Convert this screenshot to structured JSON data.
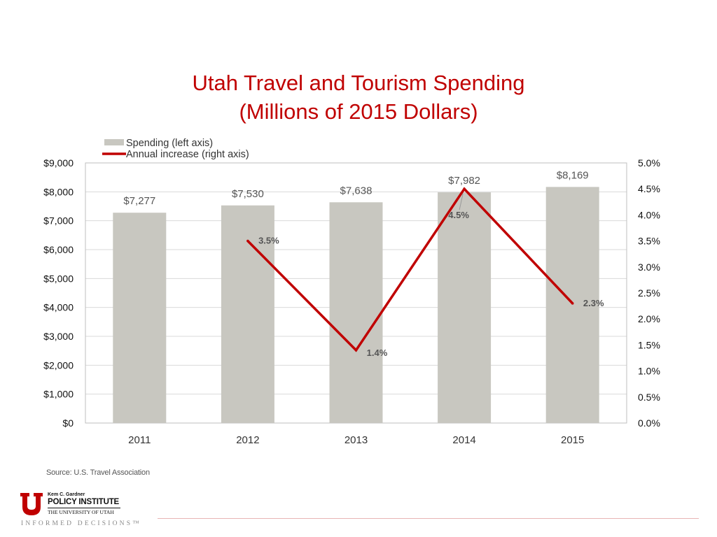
{
  "slide": {
    "title_line1": "Utah Travel and Tourism Spending",
    "title_line2": "(Millions of 2015 Dollars)",
    "source": "Source: U.S. Travel Association",
    "logo": {
      "small_text": "Kem C. Gardner",
      "main_text": "POLICY INSTITUTE",
      "sub_text": "THE UNIVERSITY OF UTAH",
      "tagline": "INFORMED DECISIONS™"
    },
    "colors": {
      "title": "#c00000",
      "bar": "#c8c7c0",
      "line": "#c00000"
    }
  },
  "chart_data": {
    "type": "bar",
    "categories": [
      "2011",
      "2012",
      "2013",
      "2014",
      "2015"
    ],
    "series": [
      {
        "name": "Spending (left axis)",
        "type": "bar",
        "axis": "left",
        "values": [
          7277,
          7530,
          7638,
          7982,
          8169
        ],
        "labels": [
          "$7,277",
          "$7,530",
          "$7,638",
          "$7,982",
          "$8,169"
        ]
      },
      {
        "name": "Annual increase (right axis)",
        "type": "line",
        "axis": "right",
        "values": [
          null,
          3.5,
          1.4,
          4.5,
          2.3
        ],
        "labels": [
          "",
          "3.5%",
          "1.4%",
          "4.5%",
          "2.3%"
        ]
      }
    ],
    "left_axis": {
      "ylim": [
        0,
        9000
      ],
      "ticks": [
        0,
        1000,
        2000,
        3000,
        4000,
        5000,
        6000,
        7000,
        8000,
        9000
      ],
      "tick_labels": [
        "$0",
        "$1,000",
        "$2,000",
        "$3,000",
        "$4,000",
        "$5,000",
        "$6,000",
        "$7,000",
        "$8,000",
        "$9,000"
      ]
    },
    "right_axis": {
      "ylim": [
        0,
        5
      ],
      "ticks": [
        0,
        0.5,
        1,
        1.5,
        2,
        2.5,
        3,
        3.5,
        4,
        4.5,
        5
      ],
      "tick_labels": [
        "0.0%",
        "0.5%",
        "1.0%",
        "1.5%",
        "2.0%",
        "2.5%",
        "3.0%",
        "3.5%",
        "4.0%",
        "4.5%",
        "5.0%"
      ]
    },
    "grid": true,
    "legend_position": "top-left"
  }
}
